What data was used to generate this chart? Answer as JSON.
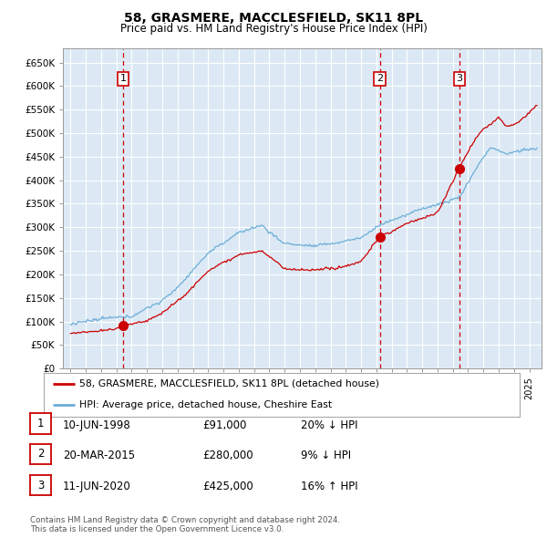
{
  "title": "58, GRASMERE, MACCLESFIELD, SK11 8PL",
  "subtitle": "Price paid vs. HM Land Registry's House Price Index (HPI)",
  "plot_bg_color": "#dce9f5",
  "grid_color": "#c8d8e8",
  "ylim": [
    0,
    680000
  ],
  "yticks": [
    0,
    50000,
    100000,
    150000,
    200000,
    250000,
    300000,
    350000,
    400000,
    450000,
    500000,
    550000,
    600000,
    650000
  ],
  "ytick_labels": [
    "£0",
    "£50K",
    "£100K",
    "£150K",
    "£200K",
    "£250K",
    "£300K",
    "£350K",
    "£400K",
    "£450K",
    "£500K",
    "£550K",
    "£600K",
    "£650K"
  ],
  "sale_dates": [
    1998.44,
    2015.22,
    2020.44
  ],
  "sale_prices": [
    91000,
    280000,
    425000
  ],
  "sale_labels": [
    "1",
    "2",
    "3"
  ],
  "legend_line1": "58, GRASMERE, MACCLESFIELD, SK11 8PL (detached house)",
  "legend_line2": "HPI: Average price, detached house, Cheshire East",
  "table_data": [
    [
      "1",
      "10-JUN-1998",
      "£91,000",
      "20% ↓ HPI"
    ],
    [
      "2",
      "20-MAR-2015",
      "£280,000",
      "9% ↓ HPI"
    ],
    [
      "3",
      "11-JUN-2020",
      "£425,000",
      "16% ↑ HPI"
    ]
  ],
  "footnote": "Contains HM Land Registry data © Crown copyright and database right 2024.\nThis data is licensed under the Open Government Licence v3.0.",
  "hpi_color": "#6baed6",
  "price_color": "#cc0000",
  "vline_color": "#cc0000",
  "box_color": "#cc0000",
  "xmin": 1994.5,
  "xmax": 2025.8
}
